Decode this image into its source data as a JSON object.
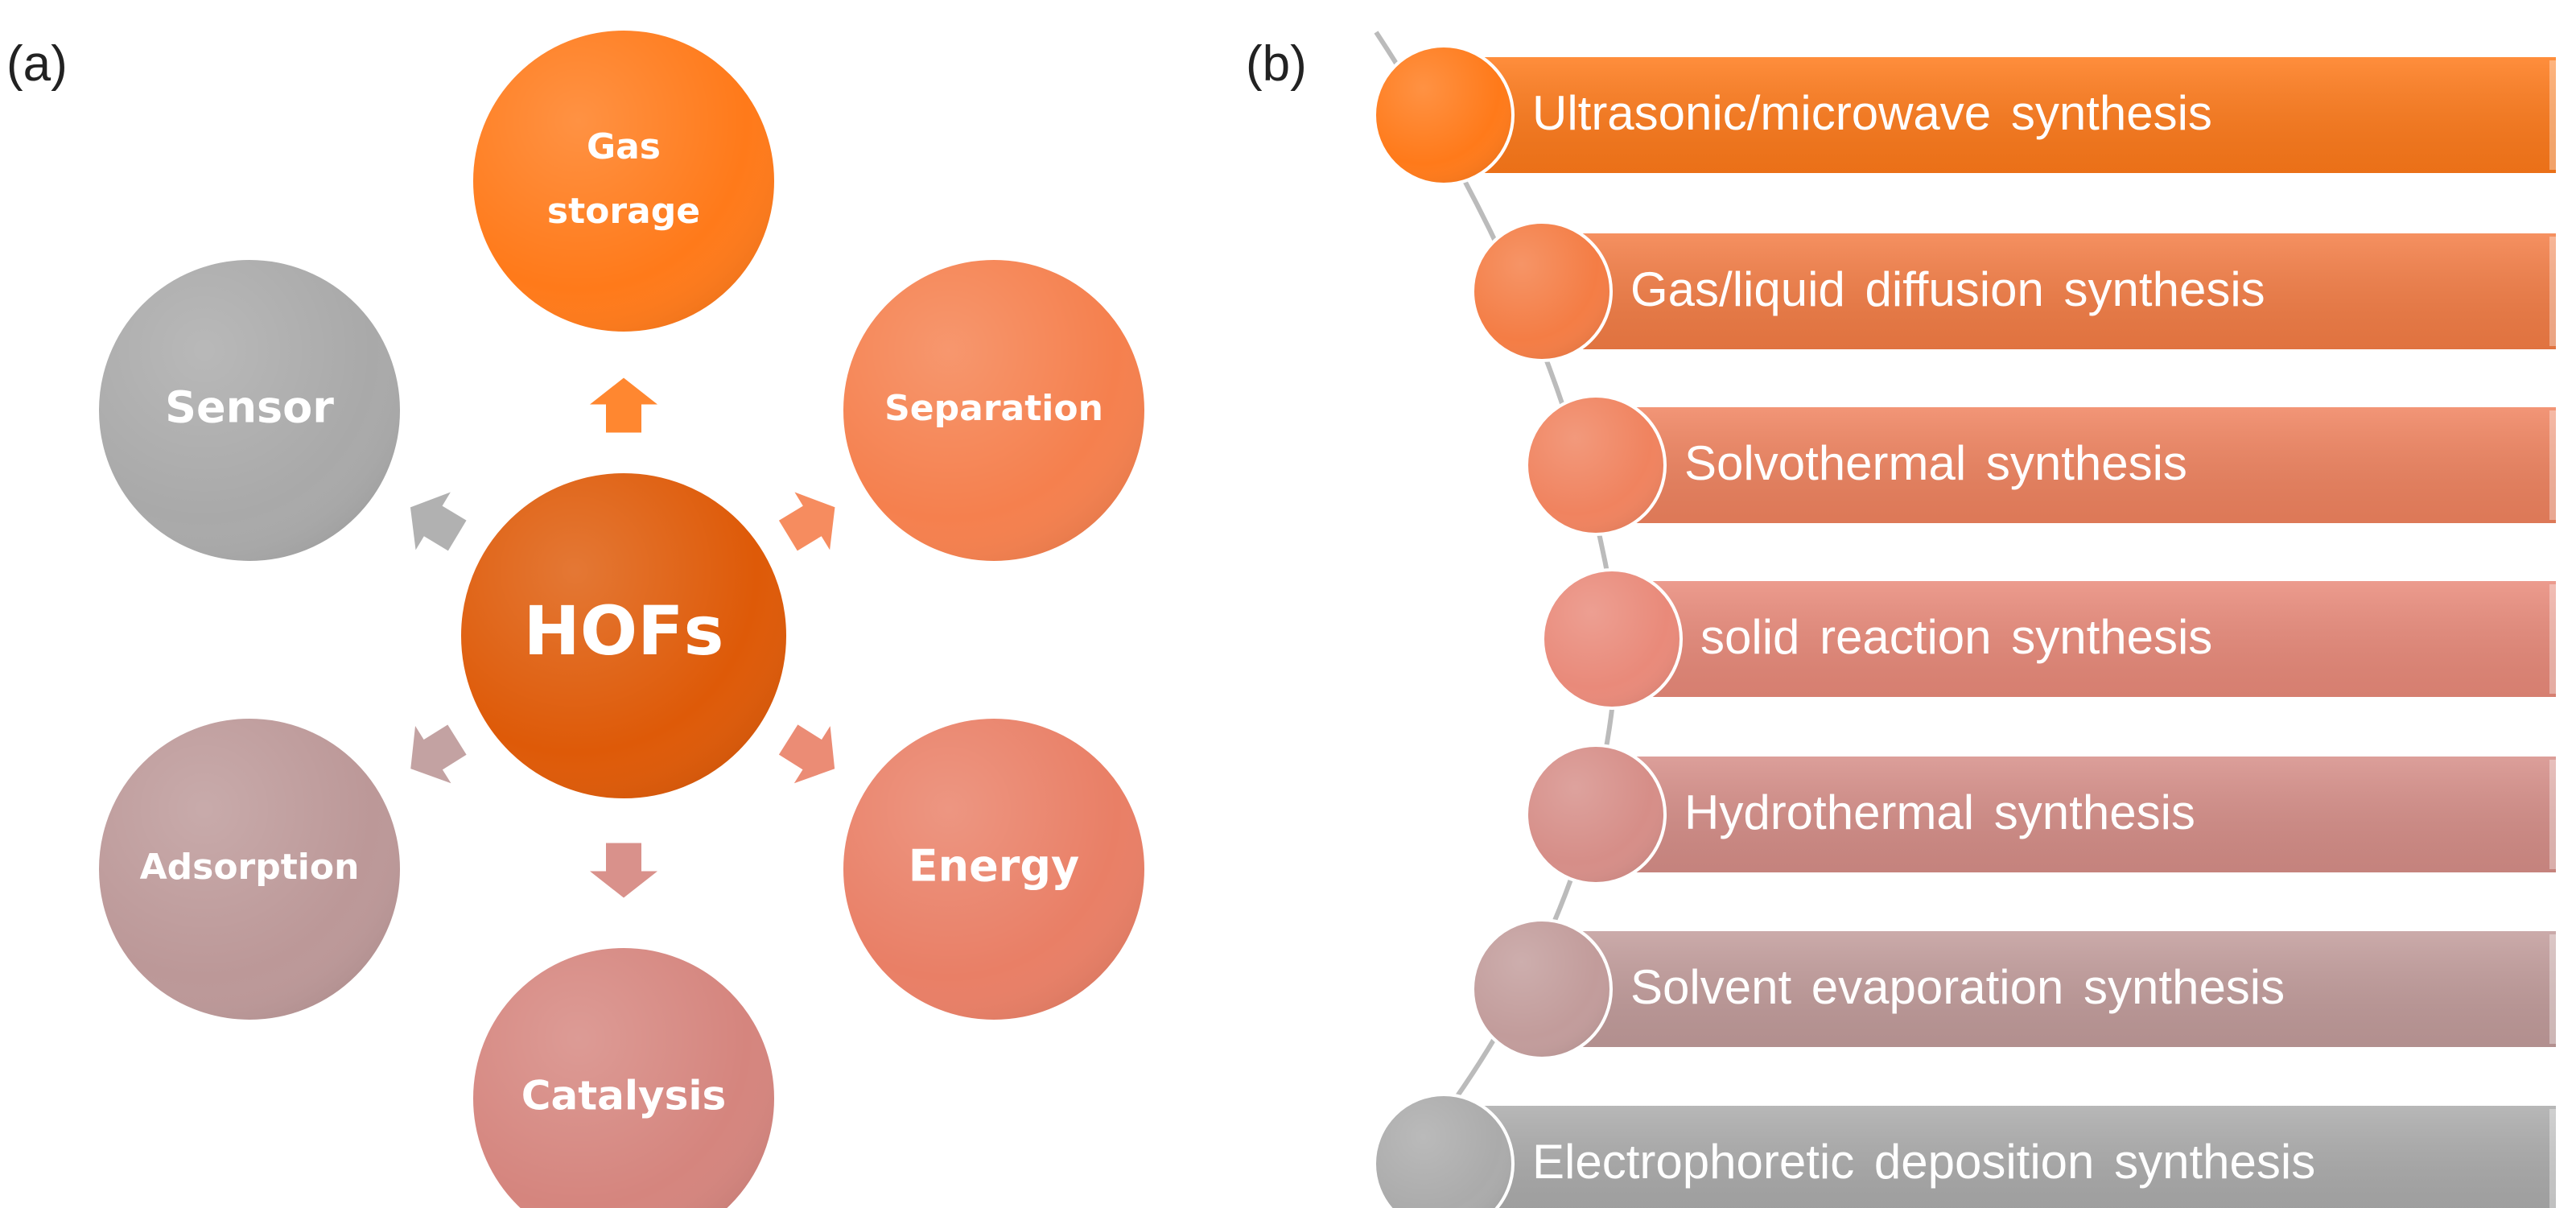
{
  "panel_a": {
    "label": "(a)",
    "center": {
      "text": "HOFs",
      "color": "#DE5A08"
    },
    "nodes": [
      {
        "text_lines": [
          "Gas",
          "storage"
        ],
        "color": "#FF7A1A"
      },
      {
        "text": "Separation",
        "color": "#F5804E"
      },
      {
        "text": "Energy",
        "color": "#E97F66"
      },
      {
        "text": "Catalysis",
        "color": "#D5857E"
      },
      {
        "text": "Adsorption",
        "color": "#BC9898"
      },
      {
        "text": "Sensor",
        "color": "#A9A9A9"
      }
    ]
  },
  "panel_b": {
    "label": "(b)",
    "items": [
      {
        "text": "Ultrasonic/microwave synthesis",
        "color": "#FF7A1A"
      },
      {
        "text": "Gas/liquid diffusion synthesis",
        "color": "#F47D45"
      },
      {
        "text": "Solvothermal synthesis",
        "color": "#F0835F"
      },
      {
        "text": "solid reaction synthesis",
        "color": "#E98A7A"
      },
      {
        "text": "Hydrothermal synthesis",
        "color": "#D68E88"
      },
      {
        "text": "Solvent evaporation synthesis",
        "color": "#C29C9B"
      },
      {
        "text": "Electrophoretic deposition synthesis",
        "color": "#ABABAB"
      }
    ]
  }
}
